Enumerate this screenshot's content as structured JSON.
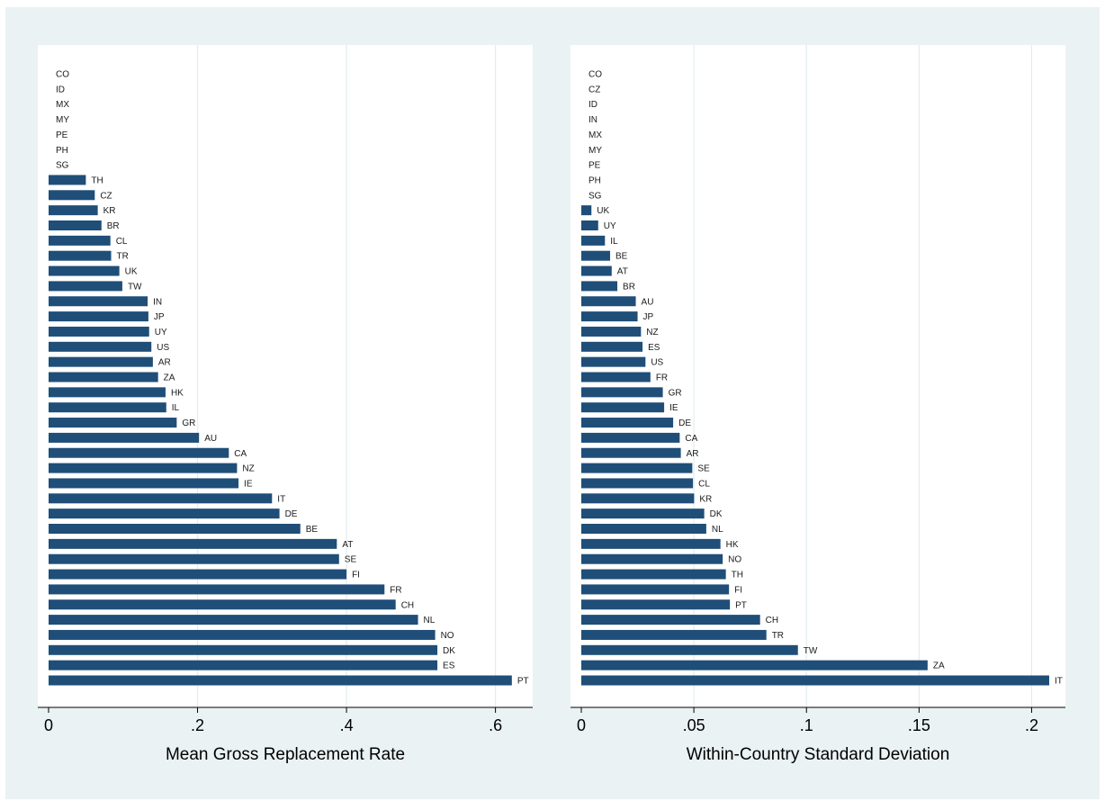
{
  "chart_data": [
    {
      "type": "bar",
      "orientation": "horizontal",
      "title": "",
      "xlabel": "Mean Gross Replacement Rate",
      "ylabel": "",
      "xlim": [
        0,
        0.65
      ],
      "xticks": [
        0,
        0.2,
        0.4,
        0.6
      ],
      "xtick_labels": [
        "0",
        ".2",
        ".4",
        ".6"
      ],
      "grid": true,
      "bar_color": "#1f4e79",
      "categories": [
        "CO",
        "ID",
        "MX",
        "MY",
        "PE",
        "PH",
        "SG",
        "TH",
        "CZ",
        "KR",
        "BR",
        "CL",
        "TR",
        "UK",
        "TW",
        "IN",
        "JP",
        "UY",
        "US",
        "AR",
        "ZA",
        "HK",
        "IL",
        "GR",
        "AU",
        "CA",
        "NZ",
        "IE",
        "IT",
        "DE",
        "BE",
        "AT",
        "SE",
        "FI",
        "FR",
        "CH",
        "NL",
        "NO",
        "DK",
        "ES",
        "PT"
      ],
      "values": [
        0,
        0,
        0,
        0,
        0,
        0,
        0,
        0.05,
        0.062,
        0.066,
        0.071,
        0.083,
        0.084,
        0.095,
        0.099,
        0.133,
        0.134,
        0.135,
        0.138,
        0.14,
        0.147,
        0.157,
        0.158,
        0.172,
        0.202,
        0.242,
        0.253,
        0.255,
        0.3,
        0.31,
        0.338,
        0.387,
        0.39,
        0.4,
        0.451,
        0.466,
        0.496,
        0.519,
        0.522,
        0.522,
        0.622
      ]
    },
    {
      "type": "bar",
      "orientation": "horizontal",
      "title": "",
      "xlabel": "Within-Country Standard Deviation",
      "ylabel": "",
      "xlim": [
        0,
        0.215
      ],
      "xticks": [
        0,
        0.05,
        0.1,
        0.15,
        0.2
      ],
      "xtick_labels": [
        "0",
        ".05",
        ".1",
        ".15",
        ".2"
      ],
      "grid": true,
      "bar_color": "#1f4e79",
      "categories": [
        "CO",
        "CZ",
        "ID",
        "IN",
        "MX",
        "MY",
        "PE",
        "PH",
        "SG",
        "UK",
        "UY",
        "IL",
        "BE",
        "AT",
        "BR",
        "AU",
        "JP",
        "NZ",
        "ES",
        "US",
        "FR",
        "GR",
        "IE",
        "DE",
        "CA",
        "AR",
        "SE",
        "CL",
        "KR",
        "DK",
        "NL",
        "HK",
        "NO",
        "TH",
        "FI",
        "PT",
        "CH",
        "TR",
        "TW",
        "ZA",
        "IT"
      ],
      "values": [
        0,
        0,
        0,
        0,
        0,
        0,
        0,
        0,
        0,
        0.0045,
        0.0075,
        0.0105,
        0.0128,
        0.0135,
        0.016,
        0.0242,
        0.025,
        0.0265,
        0.0272,
        0.0285,
        0.0307,
        0.0362,
        0.0368,
        0.0408,
        0.0437,
        0.0442,
        0.0493,
        0.0496,
        0.0501,
        0.0546,
        0.0555,
        0.0618,
        0.0628,
        0.0642,
        0.0656,
        0.066,
        0.0794,
        0.0822,
        0.0962,
        0.1538,
        0.2078
      ]
    }
  ]
}
